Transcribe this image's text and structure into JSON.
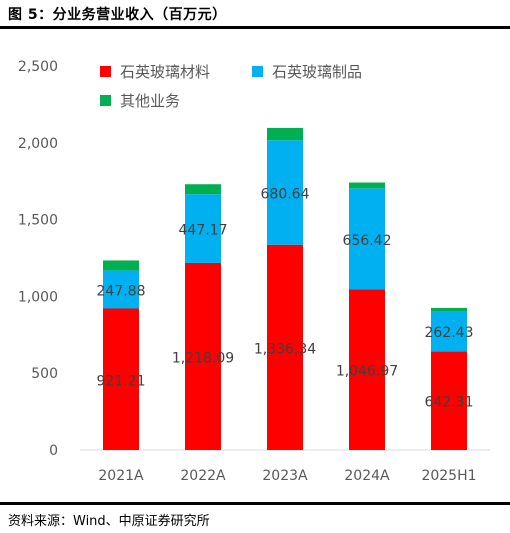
{
  "header": {
    "title": "图 5：分业务营业收入（百万元）"
  },
  "footer": {
    "source": "资料来源：Wind、中原证券研究所"
  },
  "chart_data": {
    "type": "bar",
    "stacked": true,
    "categories": [
      "2021A",
      "2022A",
      "2023A",
      "2024A",
      "2025H1"
    ],
    "ylim": [
      0,
      2500
    ],
    "yticks": [
      0,
      500,
      1000,
      1500,
      2000,
      2500
    ],
    "ytick_labels": [
      "0",
      "500",
      "1,000",
      "1,500",
      "2,000",
      "2,500"
    ],
    "grid": false,
    "legend": "top-left",
    "series": [
      {
        "name": "石英玻璃材料",
        "color": "#ff0000",
        "values": [
          921.21,
          1218.09,
          1336.34,
          1046.97,
          642.31
        ],
        "labels": [
          "921.21",
          "1,218.09",
          "1,336.34",
          "1,046.97",
          "642.31"
        ]
      },
      {
        "name": "石英玻璃制品",
        "color": "#00b0f0",
        "values": [
          247.88,
          447.17,
          680.64,
          656.42,
          262.43
        ],
        "labels": [
          "247.88",
          "447.17",
          "680.64",
          "656.42",
          "262.43"
        ]
      },
      {
        "name": "其他业务",
        "color": "#00b050",
        "values": [
          65,
          65,
          80,
          38,
          20
        ],
        "labels": [
          "",
          "",
          "",
          "",
          ""
        ]
      }
    ]
  }
}
